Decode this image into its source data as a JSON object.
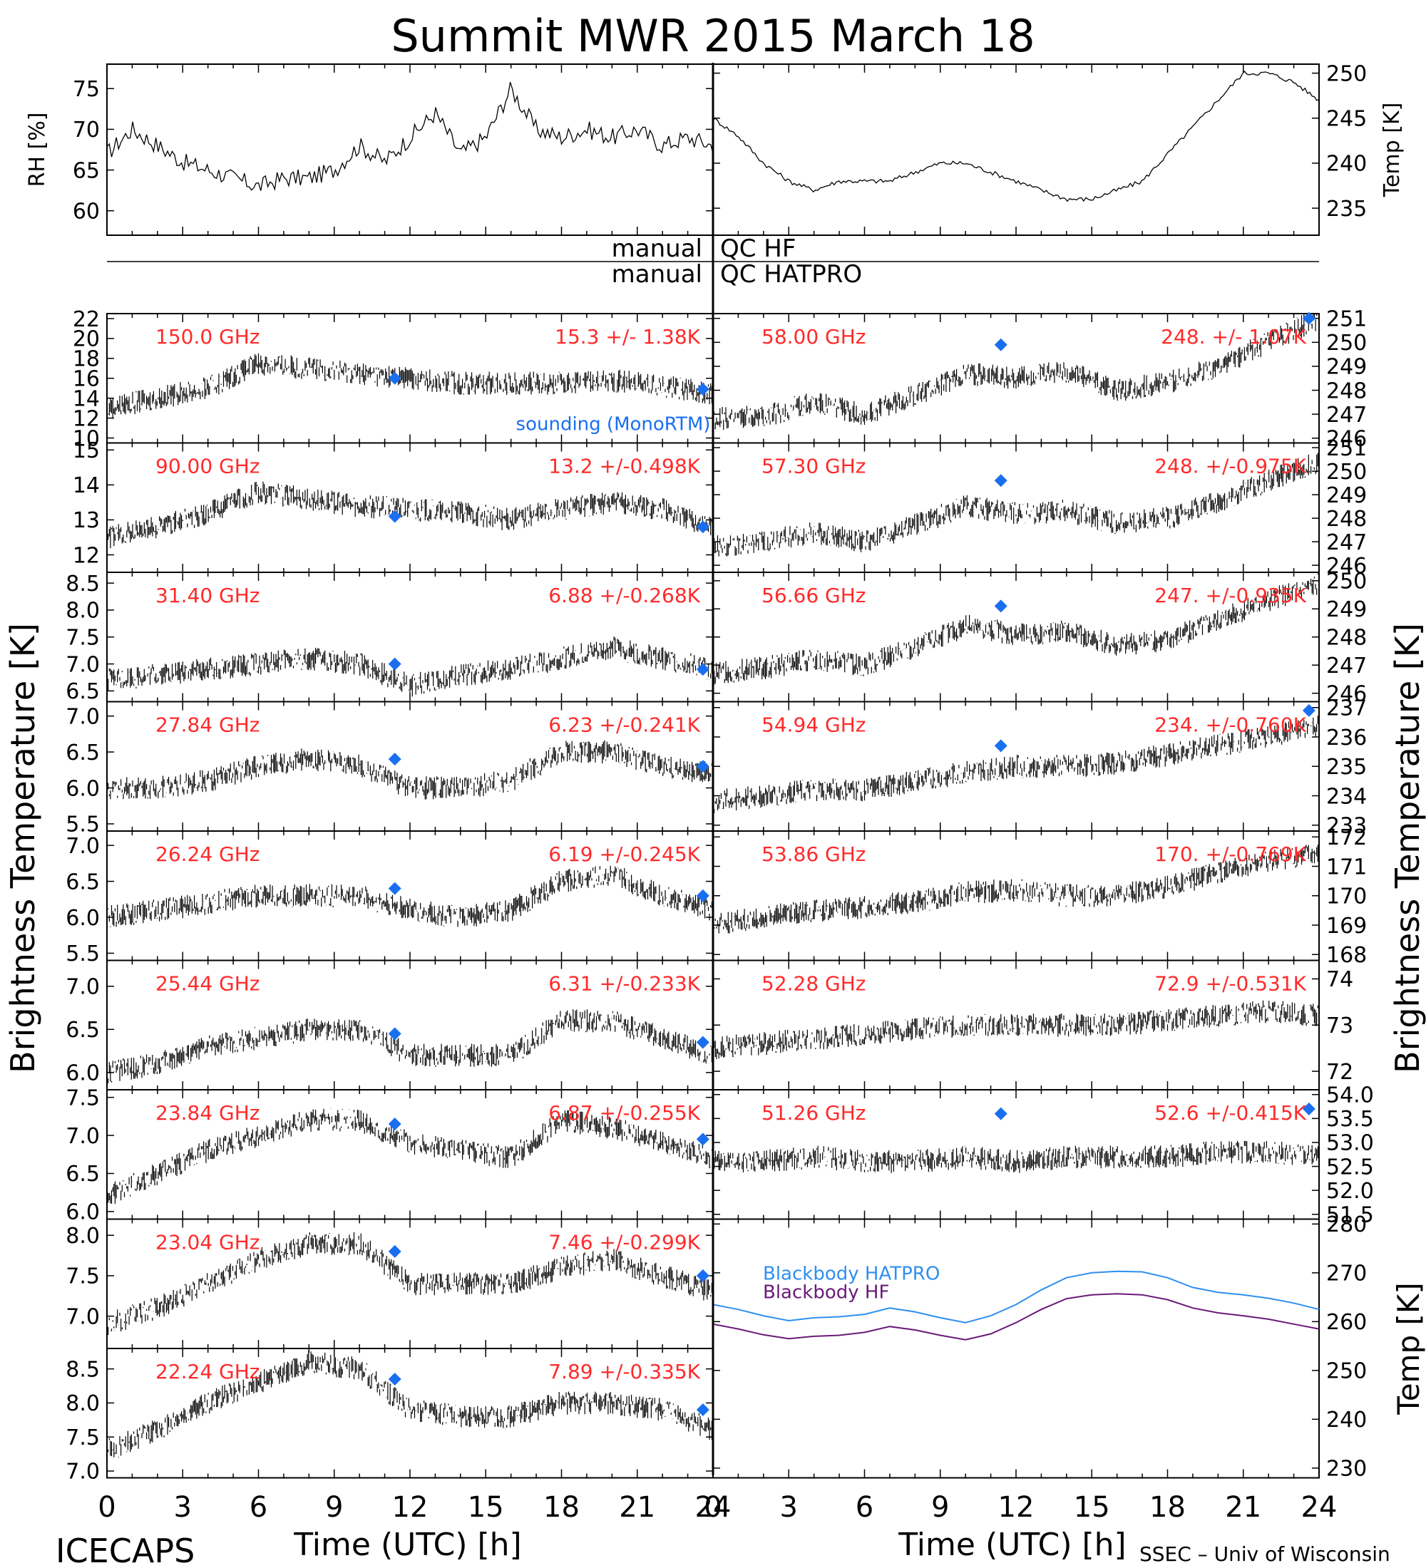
{
  "title": "Summit MWR 2015 March 18",
  "footer_left": "ICECAPS",
  "footer_right": "SSEC – Univ of Wisconsin",
  "x_axis": {
    "label": "Time (UTC) [h]",
    "ticks": [
      "0",
      "3",
      "6",
      "9",
      "12",
      "15",
      "18",
      "21",
      "24"
    ],
    "range": [
      0,
      24
    ]
  },
  "left_axis_label": "Brightness Temperature [K]",
  "right_axis_label": "Brightness Temperature [K]",
  "qc_lines": {
    "left1": "manual",
    "right1": "QC HF",
    "left2": "manual",
    "right2": "QC HATPRO"
  },
  "legend_sounding": "sounding (MonoRTM)",
  "colors": {
    "text_red": "#ff2a2a",
    "sounding_blue": "#1a6ff0",
    "blackbody_hatpro": "#2f8ff0",
    "blackbody_hf": "#6a1a78",
    "trace": "#000000"
  },
  "chart_data": [
    {
      "id": "met-rh",
      "type": "line",
      "ylabel": "RH [%]",
      "ylim": [
        57,
        78
      ],
      "yticks": [
        60,
        65,
        70,
        75
      ],
      "xlim": [
        0,
        12
      ],
      "x": [
        0,
        0.5,
        1,
        1.5,
        2,
        2.5,
        3,
        3.5,
        4,
        4.5,
        5,
        5.5,
        6,
        6.5,
        7,
        7.5,
        8,
        8.5,
        9,
        9.5,
        10,
        10.5,
        11,
        11.5,
        12
      ],
      "values": [
        67,
        70,
        68,
        66,
        65,
        64,
        63,
        64,
        64,
        65,
        68,
        66,
        69,
        72,
        67,
        69,
        75,
        70,
        69,
        70,
        69,
        70,
        68,
        69,
        68
      ]
    },
    {
      "id": "met-temp",
      "type": "line",
      "ylabel": "Temp [K]",
      "ylim": [
        232,
        251
      ],
      "yticks": [
        235,
        240,
        245,
        250
      ],
      "xlim": [
        12,
        24
      ],
      "x": [
        12,
        12.5,
        13,
        13.5,
        14,
        14.5,
        15,
        15.5,
        16,
        16.5,
        17,
        17.5,
        18,
        18.5,
        19,
        19.5,
        20,
        20.5,
        21,
        21.5,
        22,
        22.5,
        23,
        23.5,
        24
      ],
      "values": [
        245,
        243,
        240,
        238,
        237,
        238,
        238,
        238,
        239,
        240,
        240,
        239,
        238,
        237,
        236,
        236,
        237,
        238,
        241,
        244,
        247,
        250,
        250,
        249,
        247
      ]
    },
    {
      "id": "ch-150",
      "type": "line",
      "channel": "150.0 GHz",
      "stats": "15.3 +/-  1.38K",
      "side": "left",
      "row": 0,
      "ylim": [
        9.5,
        22.5
      ],
      "yticks": [
        10,
        12,
        14,
        16,
        18,
        20,
        22
      ],
      "x": [
        0,
        2,
        4,
        6,
        8,
        10,
        12,
        14,
        16,
        18,
        20,
        22,
        24
      ],
      "values": [
        13,
        14,
        15,
        17.5,
        17,
        16.5,
        16,
        15.5,
        15.5,
        15.5,
        15.8,
        15.2,
        14.5
      ],
      "sounding": [
        [
          11.4,
          16.0
        ],
        [
          23.6,
          14.9
        ]
      ]
    },
    {
      "id": "ch-90",
      "type": "line",
      "channel": "90.00 GHz",
      "stats": "13.2 +/-0.498K",
      "side": "left",
      "row": 1,
      "ylim": [
        11.5,
        15.2
      ],
      "yticks": [
        12,
        13,
        14,
        15
      ],
      "x": [
        0,
        2,
        4,
        6,
        8,
        10,
        12,
        14,
        16,
        18,
        20,
        22,
        24
      ],
      "values": [
        12.5,
        12.8,
        13.2,
        13.8,
        13.6,
        13.4,
        13.3,
        13.2,
        13.0,
        13.3,
        13.5,
        13.3,
        12.8
      ],
      "sounding": [
        [
          11.4,
          13.1
        ],
        [
          23.6,
          12.8
        ]
      ]
    },
    {
      "id": "ch-31",
      "type": "line",
      "channel": "31.40 GHz",
      "stats": "6.88 +/-0.268K",
      "side": "left",
      "row": 2,
      "ylim": [
        6.3,
        8.7
      ],
      "yticks": [
        6.5,
        7.0,
        7.5,
        8.0,
        8.5
      ],
      "x": [
        0,
        2,
        4,
        6,
        8,
        10,
        12,
        14,
        16,
        18,
        20,
        22,
        24
      ],
      "values": [
        6.7,
        6.8,
        6.9,
        7.0,
        7.1,
        7.0,
        6.6,
        6.8,
        6.9,
        7.1,
        7.3,
        7.1,
        6.9
      ],
      "sounding": [
        [
          11.4,
          7.0
        ],
        [
          23.6,
          6.9
        ]
      ]
    },
    {
      "id": "ch-27",
      "type": "line",
      "channel": "27.84 GHz",
      "stats": "6.23 +/-0.241K",
      "side": "left",
      "row": 3,
      "ylim": [
        5.4,
        7.2
      ],
      "yticks": [
        5.5,
        6.0,
        6.5,
        7.0
      ],
      "x": [
        0,
        2,
        4,
        6,
        8,
        10,
        12,
        14,
        16,
        18,
        20,
        22,
        24
      ],
      "values": [
        6.0,
        6.0,
        6.1,
        6.3,
        6.4,
        6.3,
        6.0,
        6.0,
        6.1,
        6.5,
        6.5,
        6.3,
        6.2
      ],
      "sounding": [
        [
          11.4,
          6.4
        ],
        [
          23.6,
          6.3
        ]
      ]
    },
    {
      "id": "ch-26",
      "type": "line",
      "channel": "26.24 GHz",
      "stats": "6.19 +/-0.245K",
      "side": "left",
      "row": 4,
      "ylim": [
        5.4,
        7.2
      ],
      "yticks": [
        5.5,
        6.0,
        6.5,
        7.0
      ],
      "x": [
        0,
        2,
        4,
        6,
        8,
        10,
        12,
        14,
        16,
        18,
        20,
        22,
        24
      ],
      "values": [
        6.0,
        6.1,
        6.2,
        6.3,
        6.3,
        6.3,
        6.1,
        6.0,
        6.1,
        6.5,
        6.6,
        6.3,
        6.1
      ],
      "sounding": [
        [
          11.4,
          6.4
        ],
        [
          23.6,
          6.3
        ]
      ]
    },
    {
      "id": "ch-25",
      "type": "line",
      "channel": "25.44 GHz",
      "stats": "6.31 +/-0.233K",
      "side": "left",
      "row": 5,
      "ylim": [
        5.8,
        7.3
      ],
      "yticks": [
        6.0,
        6.5,
        7.0
      ],
      "x": [
        0,
        2,
        4,
        6,
        8,
        10,
        12,
        14,
        16,
        18,
        20,
        22,
        24
      ],
      "values": [
        6.0,
        6.1,
        6.3,
        6.4,
        6.5,
        6.5,
        6.2,
        6.2,
        6.2,
        6.6,
        6.6,
        6.4,
        6.2
      ],
      "sounding": [
        [
          11.4,
          6.45
        ],
        [
          23.6,
          6.35
        ]
      ]
    },
    {
      "id": "ch-23-84",
      "type": "line",
      "channel": "23.84 GHz",
      "stats": "6.87 +/-0.255K",
      "side": "left",
      "row": 6,
      "ylim": [
        5.9,
        7.6
      ],
      "yticks": [
        6.0,
        6.5,
        7.0,
        7.5
      ],
      "x": [
        0,
        2,
        4,
        6,
        8,
        10,
        12,
        14,
        16,
        18,
        20,
        22,
        24
      ],
      "values": [
        6.2,
        6.5,
        6.8,
        7.0,
        7.2,
        7.2,
        6.9,
        6.8,
        6.7,
        7.2,
        7.1,
        6.9,
        6.7
      ],
      "sounding": [
        [
          11.4,
          7.15
        ],
        [
          23.6,
          6.95
        ]
      ]
    },
    {
      "id": "ch-23-04",
      "type": "line",
      "channel": "23.04 GHz",
      "stats": "7.46 +/-0.299K",
      "side": "left",
      "row": 7,
      "ylim": [
        6.6,
        8.2
      ],
      "yticks": [
        7.0,
        7.5,
        8.0
      ],
      "x": [
        0,
        2,
        4,
        6,
        8,
        10,
        12,
        14,
        16,
        18,
        20,
        22,
        24
      ],
      "values": [
        6.9,
        7.1,
        7.4,
        7.7,
        7.9,
        7.9,
        7.4,
        7.4,
        7.4,
        7.6,
        7.7,
        7.5,
        7.3
      ],
      "sounding": [
        [
          11.4,
          7.8
        ],
        [
          23.6,
          7.5
        ]
      ]
    },
    {
      "id": "ch-22",
      "type": "line",
      "channel": "22.24 GHz",
      "stats": "7.89 +/-0.335K",
      "side": "left",
      "row": 8,
      "ylim": [
        6.9,
        8.8
      ],
      "yticks": [
        7.0,
        7.5,
        8.0,
        8.5
      ],
      "x": [
        0,
        2,
        4,
        6,
        8,
        10,
        12,
        14,
        16,
        18,
        20,
        22,
        24
      ],
      "values": [
        7.3,
        7.6,
        8.0,
        8.3,
        8.6,
        8.5,
        7.9,
        7.8,
        7.8,
        8.0,
        8.0,
        7.9,
        7.6
      ],
      "sounding": [
        [
          11.4,
          8.35
        ],
        [
          23.6,
          7.9
        ]
      ]
    },
    {
      "id": "ch-58",
      "type": "line",
      "channel": "58.00 GHz",
      "stats": "248. +/- 1.07K",
      "side": "right",
      "row": 0,
      "ylim": [
        245.8,
        251.2
      ],
      "yticks": [
        246,
        247,
        248,
        249,
        250,
        251
      ],
      "x": [
        0,
        2,
        4,
        6,
        8,
        10,
        12,
        14,
        16,
        18,
        20,
        22,
        24
      ],
      "values": [
        246.8,
        246.9,
        247.5,
        247.0,
        247.8,
        248.7,
        248.5,
        248.8,
        248.0,
        248.3,
        249.0,
        250.0,
        251.0
      ],
      "sounding": [
        [
          11.4,
          249.9
        ],
        [
          23.6,
          251.0
        ]
      ]
    },
    {
      "id": "ch-57-30",
      "type": "line",
      "channel": "57.30 GHz",
      "stats": "248. +/-0.975K",
      "side": "right",
      "row": 1,
      "ylim": [
        245.7,
        251.2
      ],
      "yticks": [
        246,
        247,
        248,
        249,
        250,
        251
      ],
      "x": [
        0,
        2,
        4,
        6,
        8,
        10,
        12,
        14,
        16,
        18,
        20,
        22,
        24
      ],
      "values": [
        246.8,
        247.0,
        247.4,
        247.0,
        247.7,
        248.5,
        248.2,
        248.3,
        247.8,
        248.0,
        248.7,
        249.6,
        250.4
      ],
      "sounding": [
        [
          11.4,
          249.6
        ]
      ]
    },
    {
      "id": "ch-56-66",
      "type": "line",
      "channel": "56.66 GHz",
      "stats": "247. +/-0.935K",
      "side": "right",
      "row": 2,
      "ylim": [
        245.7,
        250.3
      ],
      "yticks": [
        246,
        247,
        248,
        249,
        250
      ],
      "x": [
        0,
        2,
        4,
        6,
        8,
        10,
        12,
        14,
        16,
        18,
        20,
        22,
        24
      ],
      "values": [
        246.7,
        246.9,
        247.2,
        247.0,
        247.6,
        248.4,
        248.1,
        248.2,
        247.7,
        247.9,
        248.6,
        249.3,
        249.9
      ],
      "sounding": [
        [
          11.4,
          249.1
        ]
      ]
    },
    {
      "id": "ch-54-94",
      "type": "line",
      "channel": "54.94 GHz",
      "stats": "234. +/-0.760K",
      "side": "right",
      "row": 3,
      "ylim": [
        232.8,
        237.2
      ],
      "yticks": [
        233,
        234,
        235,
        236,
        237
      ],
      "x": [
        0,
        2,
        4,
        6,
        8,
        10,
        12,
        14,
        16,
        18,
        20,
        22,
        24
      ],
      "values": [
        233.8,
        234.0,
        234.2,
        234.2,
        234.5,
        234.8,
        235.0,
        235.0,
        235.1,
        235.4,
        235.7,
        236.0,
        236.4
      ],
      "sounding": [
        [
          11.4,
          235.7
        ],
        [
          23.6,
          236.9
        ]
      ]
    },
    {
      "id": "ch-53-86",
      "type": "line",
      "channel": "53.86 GHz",
      "stats": "170. +/-0.769K",
      "side": "right",
      "row": 4,
      "ylim": [
        167.8,
        172.2
      ],
      "yticks": [
        168,
        169,
        170,
        171,
        172
      ],
      "x": [
        0,
        2,
        4,
        6,
        8,
        10,
        12,
        14,
        16,
        18,
        20,
        22,
        24
      ],
      "values": [
        169.0,
        169.3,
        169.5,
        169.6,
        169.8,
        170.1,
        170.2,
        170.0,
        170.0,
        170.3,
        170.8,
        171.2,
        171.4
      ],
      "sounding": []
    },
    {
      "id": "ch-52-28",
      "type": "line",
      "channel": "52.28 GHz",
      "stats": "72.9 +/-0.531K",
      "side": "right",
      "row": 5,
      "ylim": [
        71.6,
        74.4
      ],
      "yticks": [
        72,
        73,
        74
      ],
      "x": [
        0,
        2,
        4,
        6,
        8,
        10,
        12,
        14,
        16,
        18,
        20,
        22,
        24
      ],
      "values": [
        72.5,
        72.6,
        72.7,
        72.8,
        72.9,
        73.0,
        73.0,
        73.0,
        73.0,
        73.1,
        73.2,
        73.3,
        73.2
      ],
      "sounding": []
    },
    {
      "id": "ch-51-26",
      "type": "line",
      "channel": "51.26 GHz",
      "stats": "52.6 +/-0.415K",
      "side": "right",
      "row": 6,
      "ylim": [
        51.4,
        54.1
      ],
      "yticks": [
        51.5,
        52.0,
        52.5,
        53.0,
        53.5,
        54.0
      ],
      "x": [
        0,
        2,
        4,
        6,
        8,
        10,
        12,
        14,
        16,
        18,
        20,
        22,
        24
      ],
      "values": [
        52.6,
        52.6,
        52.7,
        52.6,
        52.6,
        52.7,
        52.6,
        52.7,
        52.7,
        52.7,
        52.8,
        52.8,
        52.7
      ],
      "sounding": [
        [
          11.4,
          53.6
        ],
        [
          23.6,
          53.7
        ]
      ]
    },
    {
      "id": "blackbody",
      "type": "line",
      "side": "right",
      "row": 7,
      "rowspan": 2,
      "ylabel": "Temp [K]",
      "ylim": [
        228,
        281
      ],
      "yticks": [
        230,
        240,
        250,
        260,
        270,
        280
      ],
      "series": [
        {
          "name": "Blackbody HATPRO",
          "x": [
            0,
            1,
            2,
            3,
            4,
            5,
            6,
            7,
            8,
            9,
            10,
            11,
            12,
            13,
            14,
            15,
            16,
            17,
            18,
            19,
            20,
            21,
            22,
            23,
            24
          ],
          "values": [
            263.5,
            262.5,
            261.2,
            260.2,
            260.8,
            261.0,
            261.5,
            262.8,
            262.0,
            260.8,
            259.8,
            261.2,
            263.5,
            266.5,
            269.0,
            270.0,
            270.3,
            270.2,
            269.0,
            267.0,
            266.0,
            265.5,
            264.8,
            263.8,
            262.5
          ]
        },
        {
          "name": "Blackbody HF",
          "x": [
            0,
            1,
            2,
            3,
            4,
            5,
            6,
            7,
            8,
            9,
            10,
            11,
            12,
            13,
            14,
            15,
            16,
            17,
            18,
            19,
            20,
            21,
            22,
            23,
            24
          ],
          "values": [
            259.5,
            258.5,
            257.3,
            256.5,
            257.0,
            257.2,
            257.8,
            259.0,
            258.3,
            257.2,
            256.3,
            257.5,
            259.8,
            262.5,
            264.7,
            265.5,
            265.7,
            265.5,
            264.5,
            262.8,
            261.8,
            261.2,
            260.5,
            259.5,
            258.5
          ]
        }
      ]
    }
  ]
}
